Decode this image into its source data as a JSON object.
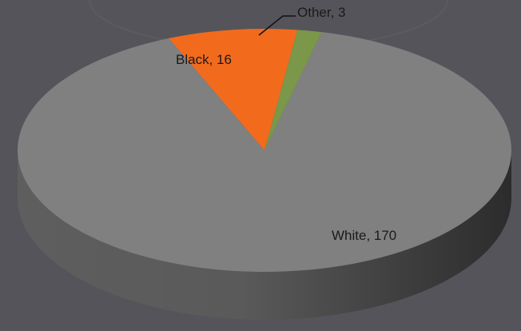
{
  "chart_data": {
    "type": "pie",
    "style": "3d",
    "slices": [
      {
        "label": "White, 170",
        "category": "White",
        "value": 170,
        "color": "#808080"
      },
      {
        "label": "Black, 16",
        "category": "Black",
        "value": 16,
        "color": "#f26b1d"
      },
      {
        "label": "Other, 3",
        "category": "Other",
        "value": 3,
        "color": "#7a974a"
      }
    ]
  }
}
